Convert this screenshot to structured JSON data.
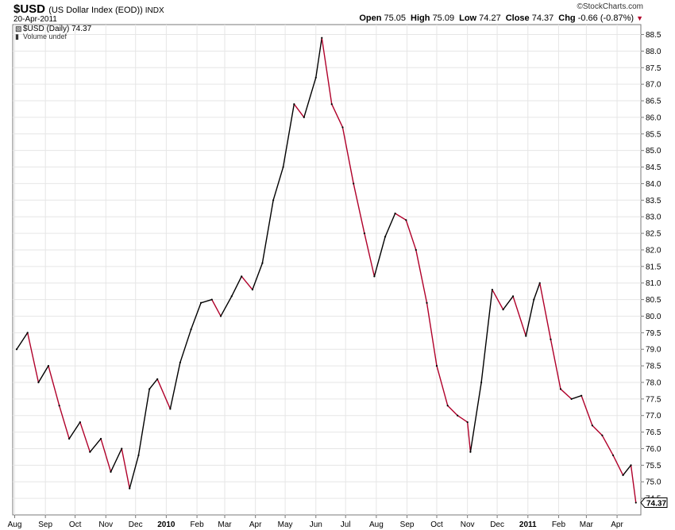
{
  "header": {
    "symbol": "$USD",
    "name": "(US Dollar Index (EOD))",
    "exchange": "INDX",
    "date": "20-Apr-2011",
    "brand": "©StockCharts.com",
    "open_label": "Open",
    "open": "75.05",
    "high_label": "High",
    "high": "75.09",
    "low_label": "Low",
    "low": "74.27",
    "close_label": "Close",
    "close": "74.37",
    "chg_label": "Chg",
    "chg": "-0.66 (-0.87%)"
  },
  "legend": {
    "price": "$USD (Daily) 74.37",
    "volume": "Volume undef"
  },
  "colors": {
    "up": "#000000",
    "down": "#b0002a",
    "grid": "#e6e6e6",
    "axis": "#7a7a7a"
  },
  "chart_data": {
    "type": "line",
    "series": [
      {
        "name": "$USD (Daily)",
        "x": [
          "2009-08-03",
          "2009-08-14",
          "2009-08-25",
          "2009-09-04",
          "2009-09-15",
          "2009-09-25",
          "2009-10-06",
          "2009-10-16",
          "2009-10-27",
          "2009-11-06",
          "2009-11-17",
          "2009-11-25",
          "2009-12-04",
          "2009-12-15",
          "2009-12-23",
          "2010-01-05",
          "2010-01-15",
          "2010-01-26",
          "2010-02-05",
          "2010-02-16",
          "2010-02-25",
          "2010-03-08",
          "2010-03-18",
          "2010-03-29",
          "2010-04-08",
          "2010-04-19",
          "2010-04-29",
          "2010-05-10",
          "2010-05-20",
          "2010-06-01",
          "2010-06-07",
          "2010-06-17",
          "2010-06-28",
          "2010-07-09",
          "2010-07-20",
          "2010-07-30",
          "2010-08-10",
          "2010-08-20",
          "2010-08-31",
          "2010-09-10",
          "2010-09-21",
          "2010-10-01",
          "2010-10-12",
          "2010-10-22",
          "2010-11-01",
          "2010-11-04",
          "2010-11-15",
          "2010-11-26",
          "2010-12-07",
          "2010-12-17",
          "2010-12-30",
          "2011-01-07",
          "2011-01-13",
          "2011-01-24",
          "2011-02-03",
          "2011-02-14",
          "2011-02-24",
          "2011-03-07",
          "2011-03-17",
          "2011-03-28",
          "2011-04-07",
          "2011-04-15",
          "2011-04-20"
        ],
        "close": [
          79.0,
          79.5,
          78.0,
          78.5,
          77.3,
          76.3,
          76.8,
          75.9,
          76.3,
          75.3,
          76.0,
          74.8,
          75.8,
          77.8,
          78.1,
          77.2,
          78.6,
          79.6,
          80.4,
          80.5,
          80.0,
          80.6,
          81.2,
          80.8,
          81.6,
          83.5,
          84.5,
          86.4,
          86.0,
          87.2,
          88.4,
          86.4,
          85.7,
          84.0,
          82.5,
          81.2,
          82.4,
          83.1,
          82.9,
          82.0,
          80.4,
          78.5,
          77.3,
          77.0,
          76.8,
          75.9,
          78.0,
          80.8,
          80.2,
          80.6,
          79.4,
          80.5,
          81.0,
          79.3,
          77.8,
          77.5,
          77.6,
          76.7,
          76.4,
          75.8,
          75.2,
          75.5,
          74.37
        ]
      }
    ],
    "x_ticks": [
      "Aug",
      "Sep",
      "Oct",
      "Nov",
      "Dec",
      "2010",
      "Feb",
      "Mar",
      "Apr",
      "May",
      "Jun",
      "Jul",
      "Aug",
      "Sep",
      "Oct",
      "Nov",
      "Dec",
      "2011",
      "Feb",
      "Mar",
      "Apr"
    ],
    "y_ticks": [
      "74.5",
      "75.0",
      "75.5",
      "76.0",
      "76.5",
      "77.0",
      "77.5",
      "78.0",
      "78.5",
      "79.0",
      "79.5",
      "80.0",
      "80.5",
      "81.0",
      "81.5",
      "82.0",
      "82.5",
      "83.0",
      "83.5",
      "84.0",
      "84.5",
      "85.0",
      "85.5",
      "86.0",
      "86.5",
      "87.0",
      "87.5",
      "88.0",
      "88.5"
    ],
    "ylim": [
      74.0,
      88.8
    ],
    "xlim": [
      "2009-07-30",
      "2011-04-25"
    ],
    "last_value_label": "74.37",
    "grid": true
  }
}
